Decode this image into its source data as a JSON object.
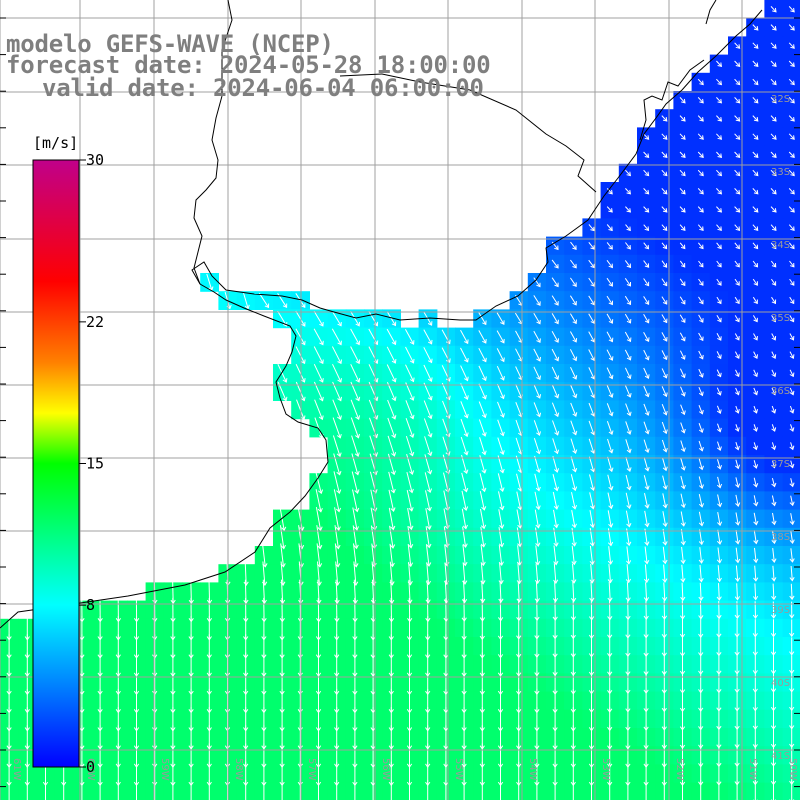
{
  "titles": {
    "model": "modelo GEFS-WAVE (NCEP)",
    "forecast": "forecast date: 2024-05-28 18:00:00",
    "valid": "valid date: 2024-06-04 06:00:00"
  },
  "colorbar": {
    "unit": "[m/s]",
    "ticks": [
      {
        "label": "30",
        "value": 30
      },
      {
        "label": "22",
        "value": 22
      },
      {
        "label": "15",
        "value": 15
      },
      {
        "label": "8",
        "value": 8
      },
      {
        "label": "0",
        "value": 0
      }
    ],
    "stops": [
      {
        "value": 0,
        "color": "#0000ff"
      },
      {
        "value": 4,
        "color": "#0080ff"
      },
      {
        "value": 8,
        "color": "#00ffff"
      },
      {
        "value": 15,
        "color": "#00ff00"
      },
      {
        "value": 17.5,
        "color": "#ffff00"
      },
      {
        "value": 20,
        "color": "#ff8000"
      },
      {
        "value": 24,
        "color": "#ff0000"
      },
      {
        "value": 30,
        "color": "#c0008a"
      }
    ]
  },
  "map": {
    "lat_labels": [
      "32S",
      "33S",
      "34S",
      "35S",
      "36S",
      "37S",
      "38S",
      "39S",
      "40S",
      "41S"
    ],
    "lon_labels": [
      "61W",
      "60W",
      "59W",
      "58W",
      "57W",
      "56W",
      "55W",
      "54W",
      "53W",
      "52W",
      "51W",
      "50W"
    ],
    "colors": {
      "gridline": "#a0a0a0",
      "coast": "#000000",
      "arrow": "#ffffff",
      "label": "#9a9a9a"
    }
  }
}
